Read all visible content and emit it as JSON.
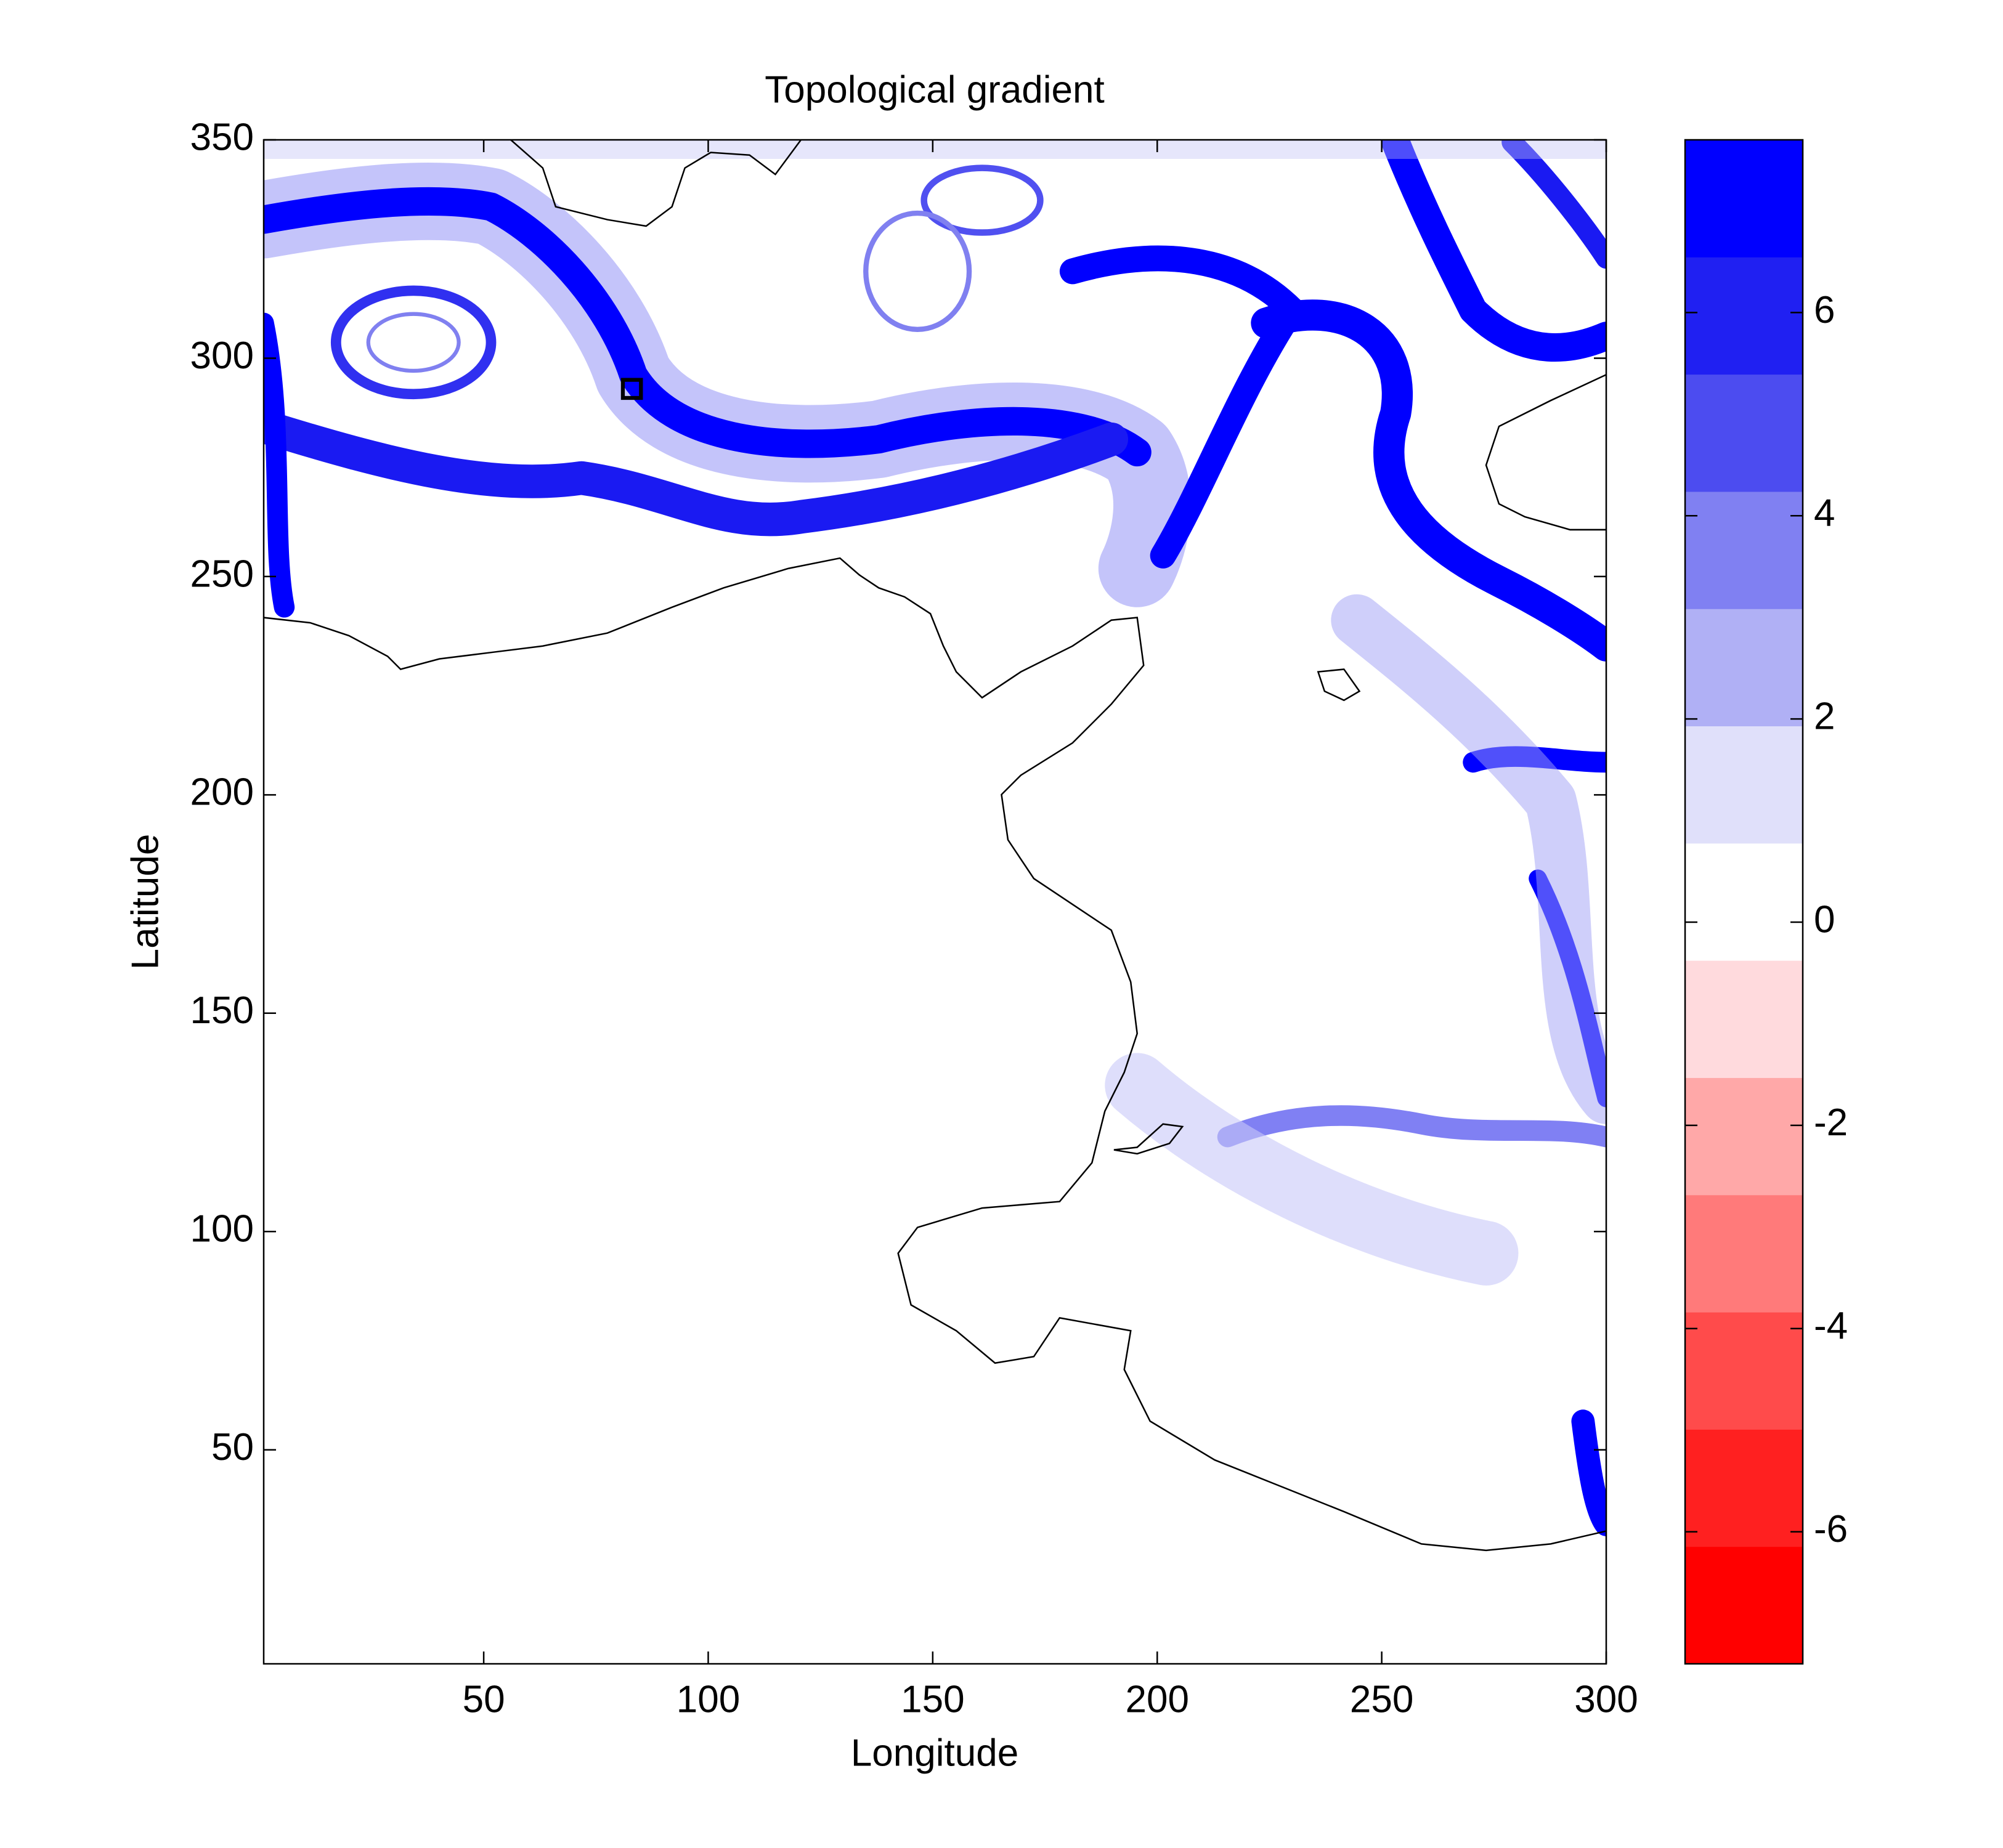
{
  "chart_data": {
    "type": "contour",
    "title": "Topological gradient",
    "x_label": "Longitude",
    "y_label": "Latitude",
    "xlim": [
      1,
      300
    ],
    "ylim": [
      1,
      350
    ],
    "xticks": [
      50,
      100,
      150,
      200,
      250,
      300
    ],
    "yticks": [
      50,
      100,
      150,
      200,
      250,
      300,
      350
    ],
    "clim": [
      -7.3,
      7.7
    ],
    "cticks": [
      -6,
      -4,
      -2,
      0,
      2,
      4,
      6
    ],
    "color_levels": [
      "#ff0000",
      "#ff2020",
      "#ff4b4b",
      "#ff7a7a",
      "#ffa8a8",
      "#ffdadd",
      "#ffffff",
      "#e0e0fa",
      "#b0b0f5",
      "#8080f2",
      "#4c4cf0",
      "#2020f2",
      "#0000ff"
    ],
    "contour_color": "#0000ff",
    "coast_color": "#000000"
  }
}
